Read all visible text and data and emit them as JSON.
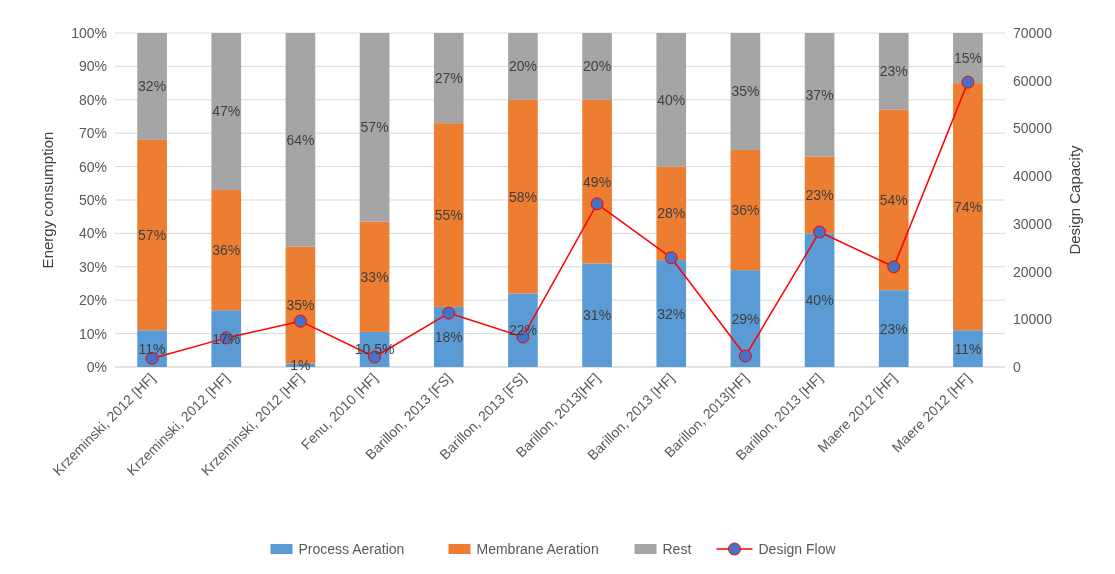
{
  "chart_data": {
    "type": "bar",
    "stacked": true,
    "ylabel": "Energy consumption",
    "y2label": "Design Capacity",
    "categories": [
      "Krzeminski, 2012 [HF]",
      "Krzeminski, 2012 [HF]",
      "Krzeminski, 2012 [HF]",
      "Fenu, 2010 [HF]",
      "Barillon, 2013 [FS]",
      "Barillon, 2013 [FS]",
      "Barillon, 2013[HF]",
      "Barillon, 2013 [HF]",
      "Barillon, 2013[HF]",
      "Barillon, 2013 [HF]",
      "Maere 2012 [HF]",
      "Maere 2012 [HF]"
    ],
    "series": [
      {
        "name": "Process Aeration",
        "color": "#5b9bd5",
        "values": [
          11,
          17,
          1,
          10.5,
          18,
          22,
          31,
          32,
          29,
          40,
          23,
          11
        ],
        "value_labels": [
          "11%",
          "17%",
          "1%",
          "10.5%",
          "18%",
          "22%",
          "31%",
          "32%",
          "29%",
          "40%",
          "23%",
          "11%"
        ]
      },
      {
        "name": "Membrane Aeration",
        "color": "#ed7d31",
        "values": [
          57,
          36,
          35,
          33,
          55,
          58,
          49,
          28,
          36,
          23,
          54,
          74
        ],
        "value_labels": [
          "57%",
          "36%",
          "35%",
          "33%",
          "55%",
          "58%",
          "49%",
          "28%",
          "36%",
          "23%",
          "54%",
          "74%"
        ]
      },
      {
        "name": "Rest",
        "color": "#a5a5a5",
        "values": [
          32,
          47,
          64,
          56.5,
          27,
          20,
          20,
          40,
          35,
          37,
          23,
          15
        ],
        "value_labels": [
          "32%",
          "47%",
          "64%",
          "57%",
          "27%",
          "20%",
          "20%",
          "40%",
          "35%",
          "37%",
          "23%",
          "15%"
        ]
      },
      {
        "name": "Design Flow",
        "type": "line",
        "axis": "y2",
        "color": "#ff0000",
        "marker": "circle",
        "values": [
          1800,
          6100,
          9600,
          2100,
          11300,
          6300,
          34200,
          22900,
          2300,
          28300,
          21000,
          59700
        ]
      }
    ],
    "ylim": [
      0,
      100
    ],
    "yticks": [
      {
        "value": 0,
        "label": "0%"
      },
      {
        "value": 10,
        "label": "10%"
      },
      {
        "value": 20,
        "label": "20%"
      },
      {
        "value": 30,
        "label": "30%"
      },
      {
        "value": 40,
        "label": "40%"
      },
      {
        "value": 50,
        "label": "50%"
      },
      {
        "value": 60,
        "label": "60%"
      },
      {
        "value": 70,
        "label": "70%"
      },
      {
        "value": 80,
        "label": "80%"
      },
      {
        "value": 90,
        "label": "90%"
      },
      {
        "value": 100,
        "label": "100%"
      }
    ],
    "y2lim": [
      0,
      70000
    ],
    "y2ticks": [
      0,
      10000,
      20000,
      30000,
      40000,
      50000,
      60000,
      70000
    ],
    "grid": "y",
    "legend": "bottom"
  }
}
